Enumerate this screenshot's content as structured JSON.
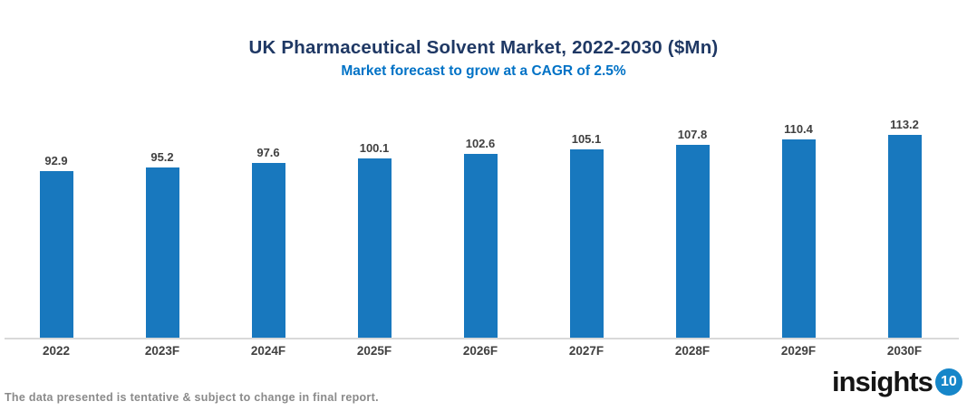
{
  "header": {
    "title": "UK Pharmaceutical Solvent Market, 2022-2030 ($Mn)",
    "subtitle": "Market forecast to grow at a CAGR of 2.5%"
  },
  "footer": {
    "note": "The data presented is tentative & subject to change in final report."
  },
  "logo": {
    "text": "insights",
    "badge": "10"
  },
  "colors": {
    "bar": "#1878BE",
    "title": "#1F3864",
    "subtitle": "#0072C6",
    "value_label": "#404040",
    "axis_line": "#D9D9D9",
    "footer": "#8A8A8A",
    "logo_badge": "#1686C9",
    "logo_text": "#151515"
  },
  "chart_data": {
    "type": "bar",
    "categories": [
      "2022",
      "2023F",
      "2024F",
      "2025F",
      "2026F",
      "2027F",
      "2028F",
      "2029F",
      "2030F"
    ],
    "values": [
      92.9,
      95.2,
      97.6,
      100.1,
      102.6,
      105.1,
      107.8,
      110.4,
      113.2
    ],
    "title": "UK Pharmaceutical Solvent Market, 2022-2030 ($Mn)",
    "subtitle": "Market forecast to grow at a CAGR of 2.5%",
    "xlabel": "",
    "ylabel": "",
    "ylim": [
      0,
      125
    ],
    "grid": false,
    "legend": false,
    "data_labels": true,
    "bar_color": "#1878BE"
  }
}
